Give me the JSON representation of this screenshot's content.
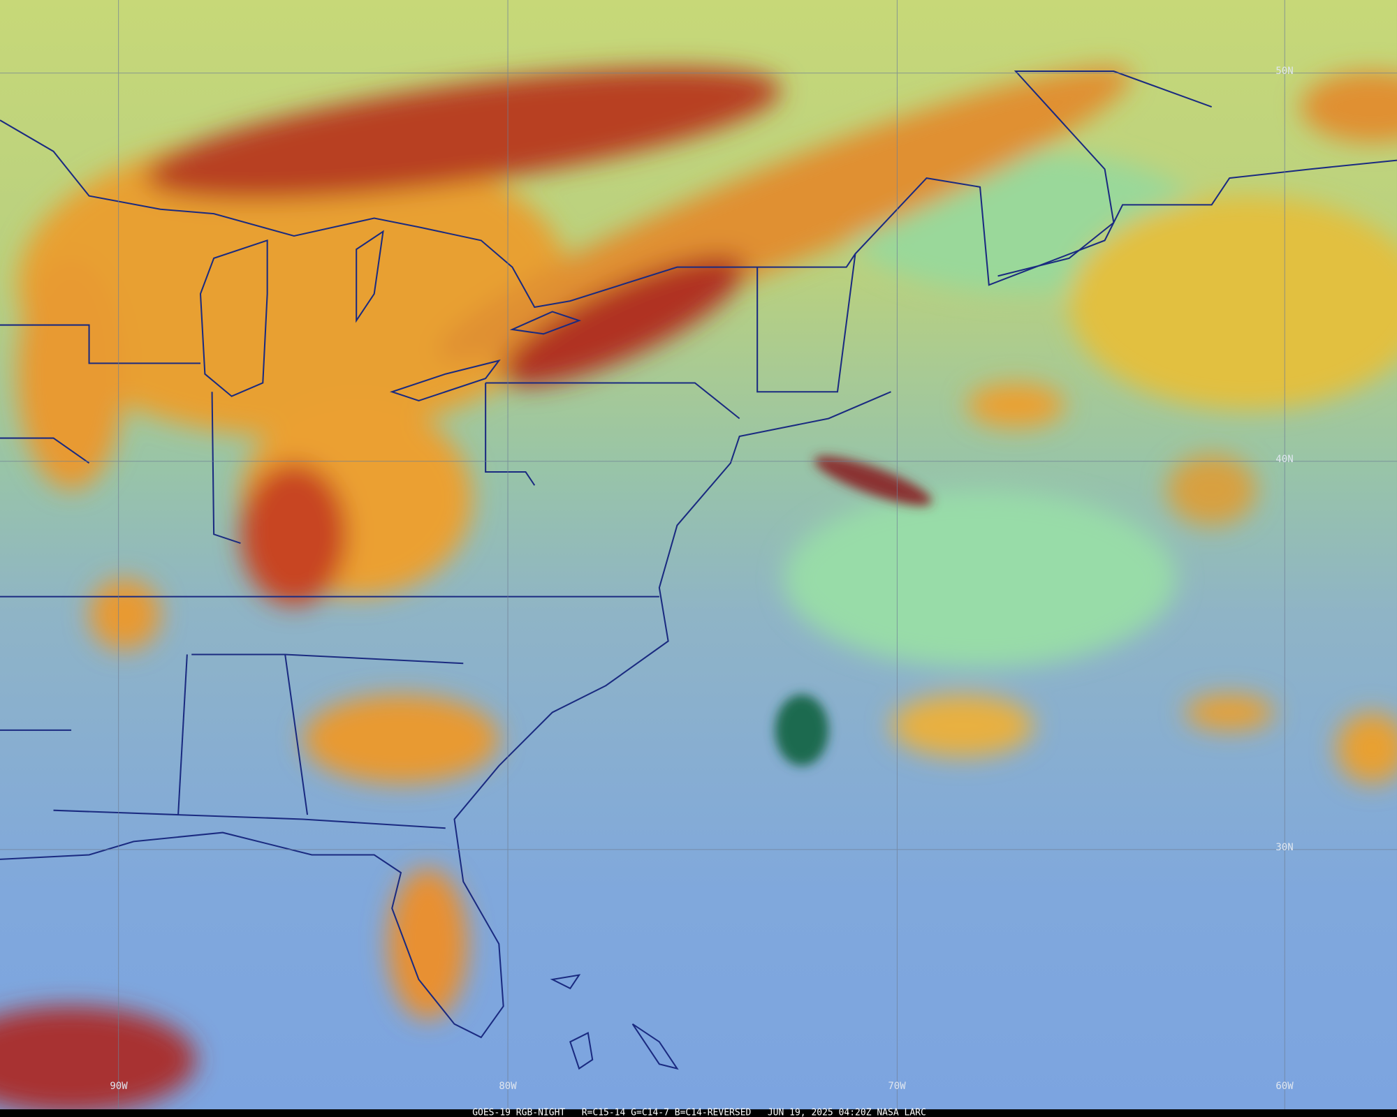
{
  "graticule": {
    "latitude_labels": [
      "50N",
      "40N",
      "30N"
    ],
    "longitude_labels": [
      "90W",
      "80W",
      "70W",
      "60W"
    ]
  },
  "footer": "GOES-19 RGB-NIGHT   R=C15-14 G=C14-7 B=C14-REVERSED   JUN 19, 2025 04:20Z NASA LARC"
}
